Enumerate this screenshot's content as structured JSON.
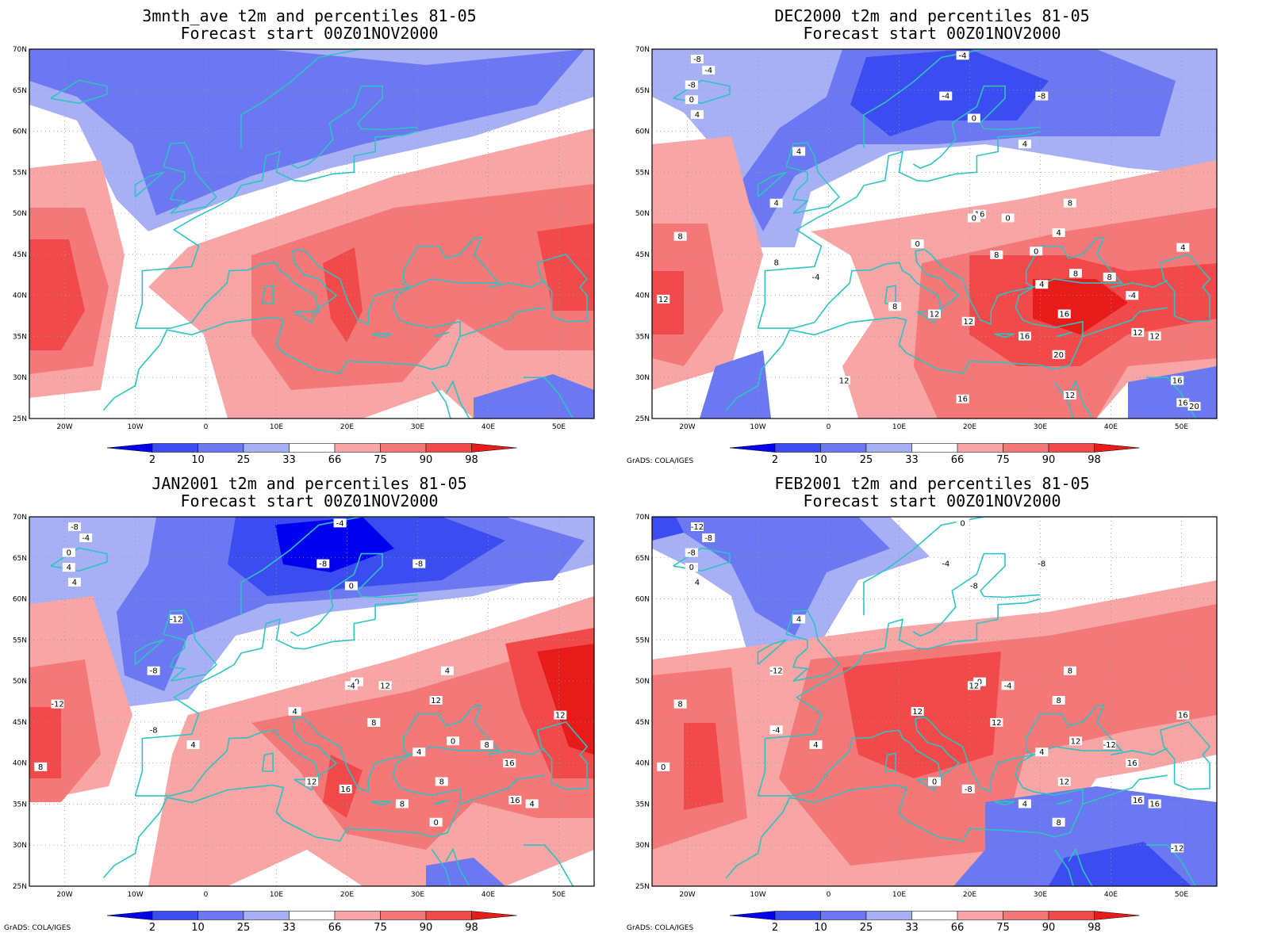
{
  "panels": [
    {
      "title_line1": "3mnth_ave t2m and percentiles 81-05",
      "title_line2": "Forecast start 00Z01NOV2000",
      "credit": "",
      "contour_labels": []
    },
    {
      "title_line1": "DEC2000 t2m and percentiles 81-05",
      "title_line2": "Forecast start 00Z01NOV2000",
      "credit": "GrADS: COLA/IGES",
      "contour_labels": [
        "-8",
        "-4",
        "-8",
        "0",
        "4",
        "4",
        "-4",
        "-8",
        "-4",
        "0",
        "4",
        "8",
        "8",
        "12",
        "16",
        "20",
        "0",
        "0",
        "-4",
        "4",
        "12",
        "16",
        "12",
        "8",
        "16",
        "12",
        "8",
        "0",
        "4",
        "8",
        "8",
        "-4",
        "4",
        "12",
        "16",
        "12",
        "16",
        "4",
        "0",
        "8",
        "12",
        "16",
        "20"
      ]
    },
    {
      "title_line1": "JAN2001 t2m and percentiles 81-05",
      "title_line2": "Forecast start 00Z01NOV2000",
      "credit": "GrADS: COLA/IGES",
      "contour_labels": [
        "-8",
        "-4",
        "0",
        "4",
        "4",
        "-12",
        "-8",
        "-8",
        "-4",
        "0",
        "-8",
        "-8",
        "-12",
        "8",
        "0",
        "0",
        "4",
        "-4",
        "4",
        "12",
        "12",
        "8",
        "4",
        "4",
        "8",
        "16",
        "8",
        "12",
        "4",
        "8",
        "0",
        "16",
        "12",
        "16"
      ]
    },
    {
      "title_line1": "FEB2001 t2m and percentiles 81-05",
      "title_line2": "Forecast start 00Z01NOV2000",
      "credit": "GrADS: COLA/IGES",
      "contour_labels": [
        "-12",
        "-8",
        "-8",
        "0",
        "4",
        "4",
        "-4",
        "-8",
        "0",
        "-8",
        "-12",
        "-4",
        "8",
        "0",
        "0",
        "8",
        "12",
        "12",
        "4",
        "8",
        "0",
        "4",
        "16",
        "8",
        "12",
        "16",
        "12",
        "-4",
        "4",
        "-12",
        "12",
        "16",
        "16",
        "-8",
        "-12"
      ]
    }
  ],
  "lat_labels": [
    "70N",
    "65N",
    "60N",
    "55N",
    "50N",
    "45N",
    "40N",
    "35N",
    "30N",
    "25N"
  ],
  "lon_labels": [
    "20W",
    "10W",
    "0",
    "10E",
    "20E",
    "30E",
    "40E",
    "50E"
  ],
  "colorbar_labels": [
    "2",
    "10",
    "25",
    "33",
    "66",
    "75",
    "90",
    "98"
  ],
  "colorbar_colors": [
    "#0000ee",
    "#3b4cf0",
    "#6b78f2",
    "#a8b0f5",
    "#ffffff",
    "#f7a5a5",
    "#f57878",
    "#f24a4a",
    "#e81b1b"
  ],
  "colors": {
    "coast": "#2ec3c3",
    "grid": "#999999"
  }
}
